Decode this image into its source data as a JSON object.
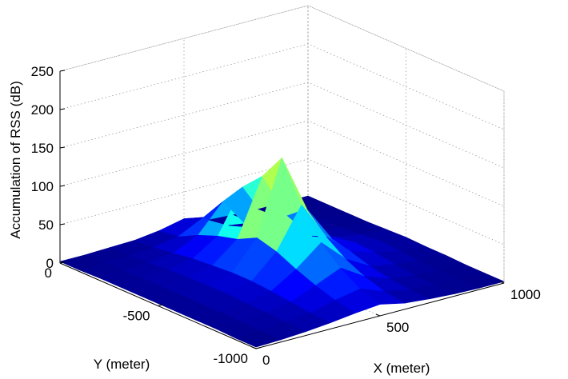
{
  "chart_data": {
    "type": "surface",
    "title": "",
    "xlabel": "X (meter)",
    "ylabel": "Y (meter)",
    "zlabel": "Accumulation of RSS (dB)",
    "xlim": [
      0,
      1000
    ],
    "ylim": [
      -1000,
      0
    ],
    "zlim": [
      0,
      250
    ],
    "x_ticks": [
      "0",
      "500",
      "1000"
    ],
    "y_ticks": [
      "0",
      "-500",
      "-1000"
    ],
    "z_ticks": [
      "0",
      "50",
      "100",
      "150",
      "200",
      "250"
    ],
    "grid": true,
    "colormap": "jet",
    "x": [
      0,
      100,
      200,
      300,
      400,
      500,
      600,
      700,
      800,
      900,
      1000
    ],
    "y": [
      0,
      -100,
      -200,
      -300,
      -400,
      -500,
      -600,
      -700,
      -800,
      -900,
      -1000
    ],
    "z": [
      [
        2,
        2,
        3,
        4,
        8,
        15,
        5,
        3,
        2,
        2,
        2
      ],
      [
        2,
        3,
        4,
        6,
        12,
        28,
        9,
        4,
        3,
        2,
        2
      ],
      [
        3,
        4,
        6,
        10,
        25,
        60,
        18,
        7,
        4,
        3,
        2
      ],
      [
        3,
        5,
        8,
        14,
        35,
        90,
        38,
        12,
        6,
        3,
        2
      ],
      [
        3,
        5,
        9,
        16,
        42,
        115,
        55,
        20,
        10,
        5,
        3
      ],
      [
        3,
        5,
        10,
        18,
        55,
        150,
        75,
        28,
        14,
        8,
        4
      ],
      [
        3,
        5,
        10,
        18,
        48,
        100,
        50,
        22,
        12,
        6,
        3
      ],
      [
        3,
        5,
        9,
        16,
        36,
        62,
        32,
        14,
        8,
        4,
        3
      ],
      [
        3,
        4,
        8,
        13,
        26,
        40,
        20,
        9,
        5,
        3,
        2
      ],
      [
        2,
        4,
        7,
        10,
        18,
        24,
        12,
        6,
        4,
        3,
        2
      ],
      [
        2,
        3,
        5,
        8,
        12,
        15,
        8,
        5,
        3,
        2,
        2
      ]
    ]
  }
}
